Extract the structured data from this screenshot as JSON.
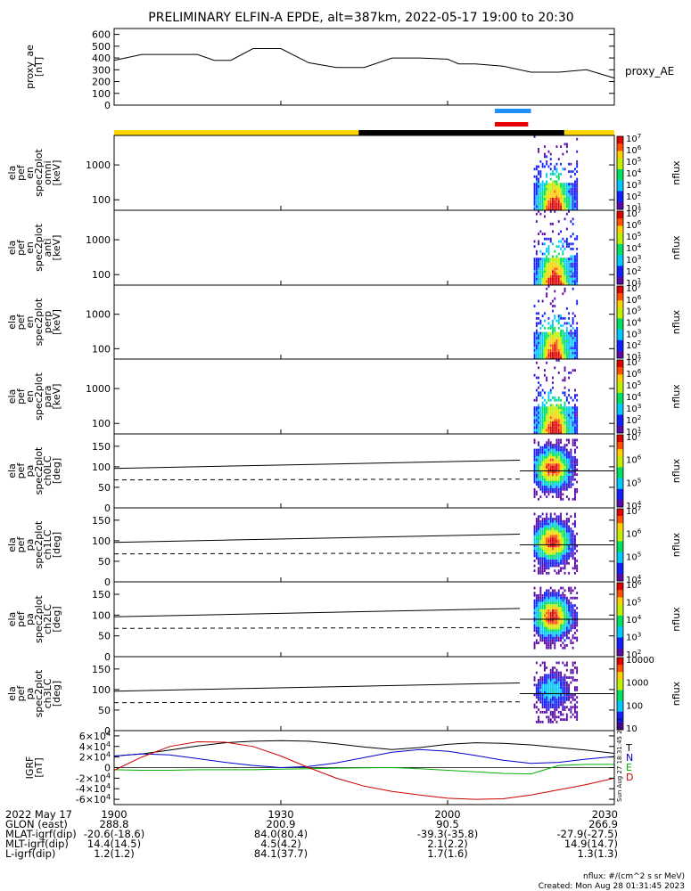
{
  "title": "PRELIMINARY ELFIN-A EPDE, alt=387km, 2022-05-17 19:00 to 20:30",
  "stamp": "Sun Aug 27 18:31:45 2023",
  "footer": {
    "units_note": "nflux: #/(cm^2 s sr MeV)",
    "created": "Created: Mon Aug 28 01:31:45 2023"
  },
  "colors": {
    "quality_bar_yellow": "#ffd700",
    "quality_bar_black": "#000000",
    "science_zone_blue": "#1e90ff",
    "science_zone_red": "#e60000",
    "grf_t": "#000000",
    "grf_n": "#0000cc",
    "grf_e": "#00b000",
    "grf_d": "#cc0000"
  },
  "chart_data": [
    {
      "id": "proxy_ae",
      "type": "line",
      "ylabel_lines": [
        "proxy_ae",
        "[nT]"
      ],
      "right_label": "proxy_AE",
      "ylim": [
        0,
        650
      ],
      "yticks": [
        0,
        100,
        200,
        300,
        400,
        500,
        600
      ],
      "xlim": [
        0,
        90
      ],
      "x": [
        0,
        5,
        10,
        15,
        18,
        21,
        25,
        30,
        35,
        40,
        43,
        45,
        50,
        55,
        60,
        62,
        65,
        70,
        75,
        80,
        85,
        90
      ],
      "values": [
        380,
        430,
        430,
        430,
        380,
        380,
        480,
        480,
        360,
        320,
        320,
        320,
        400,
        400,
        390,
        350,
        350,
        330,
        280,
        280,
        300,
        230
      ]
    },
    {
      "id": "ela_pef_en_spec2plot_omni",
      "type": "heatmap",
      "ylabel_lines": [
        "ela",
        "pef",
        "en",
        "spec2plot",
        "omni",
        "[keV]"
      ],
      "yscale": "log",
      "ylim": [
        50,
        7000
      ],
      "yticks": [
        100,
        1000
      ],
      "ytick_labels": [
        "100",
        "1000"
      ],
      "colorbar": {
        "label": "nflux",
        "scale": "log",
        "range": [
          10,
          10000000
        ],
        "ticks": [
          "10^1",
          "10^2",
          "10^3",
          "10^4",
          "10^5",
          "10^6",
          "10^7"
        ]
      },
      "event_window_min": [
        75.5,
        83.5
      ]
    },
    {
      "id": "ela_pef_en_spec2plot_anti",
      "type": "heatmap",
      "ylabel_lines": [
        "ela",
        "pef",
        "en",
        "spec2plot",
        "anti",
        "[keV]"
      ],
      "yscale": "log",
      "ylim": [
        50,
        7000
      ],
      "yticks": [
        100,
        1000
      ],
      "ytick_labels": [
        "100",
        "1000"
      ],
      "colorbar": {
        "label": "nflux",
        "scale": "log",
        "range": [
          10,
          10000000
        ],
        "ticks": [
          "10^1",
          "10^2",
          "10^3",
          "10^4",
          "10^5",
          "10^6",
          "10^7"
        ]
      },
      "event_window_min": [
        75.5,
        83.5
      ]
    },
    {
      "id": "ela_pef_en_spec2plot_perp",
      "type": "heatmap",
      "ylabel_lines": [
        "ela",
        "pef",
        "en",
        "spec2plot",
        "perp",
        "[keV]"
      ],
      "yscale": "log",
      "ylim": [
        50,
        7000
      ],
      "yticks": [
        100,
        1000
      ],
      "ytick_labels": [
        "100",
        "1000"
      ],
      "colorbar": {
        "label": "nflux",
        "scale": "log",
        "range": [
          10,
          10000000
        ],
        "ticks": [
          "10^1",
          "10^2",
          "10^3",
          "10^4",
          "10^5",
          "10^6",
          "10^7"
        ]
      },
      "event_window_min": [
        75.5,
        83.5
      ]
    },
    {
      "id": "ela_pef_en_spec2plot_para",
      "type": "heatmap",
      "ylabel_lines": [
        "ela",
        "pef",
        "en",
        "spec2plot",
        "para",
        "[keV]"
      ],
      "yscale": "log",
      "ylim": [
        50,
        7000
      ],
      "yticks": [
        100,
        1000
      ],
      "ytick_labels": [
        "100",
        "1000"
      ],
      "colorbar": {
        "label": "nflux",
        "scale": "log",
        "range": [
          10,
          10000000
        ],
        "ticks": [
          "10^1",
          "10^2",
          "10^3",
          "10^4",
          "10^5",
          "10^6",
          "10^7"
        ]
      },
      "event_window_min": [
        75.5,
        83.5
      ]
    },
    {
      "id": "ela_pef_pa_spec2plot_ch0LC",
      "type": "heatmap",
      "ylabel_lines": [
        "ela",
        "pef",
        "pa",
        "spec2plot",
        "ch0LC",
        "[deg]"
      ],
      "yscale": "linear",
      "ylim": [
        0,
        180
      ],
      "yticks": [
        0,
        50,
        100,
        150
      ],
      "ytick_labels": [
        "0",
        "50",
        "100",
        "150"
      ],
      "colorbar": {
        "label": "nflux",
        "scale": "log",
        "range": [
          1000,
          10000000
        ],
        "ticks": [
          "10^4",
          "10^5",
          "10^6",
          "10^7"
        ]
      },
      "loss_cone_solid_deg": [
        96,
        116
      ],
      "loss_cone_dashed_deg": [
        68,
        70
      ],
      "event_window_min": [
        75.5,
        83.5
      ]
    },
    {
      "id": "ela_pef_pa_spec2plot_ch1LC",
      "type": "heatmap",
      "ylabel_lines": [
        "ela",
        "pef",
        "pa",
        "spec2plot",
        "ch1LC",
        "[deg]"
      ],
      "yscale": "linear",
      "ylim": [
        0,
        180
      ],
      "yticks": [
        0,
        50,
        100,
        150
      ],
      "ytick_labels": [
        "0",
        "50",
        "100",
        "150"
      ],
      "colorbar": {
        "label": "nflux",
        "scale": "log",
        "range": [
          1000,
          10000000
        ],
        "ticks": [
          "10^4",
          "10^5",
          "10^6",
          "10^7"
        ]
      },
      "loss_cone_solid_deg": [
        96,
        116
      ],
      "loss_cone_dashed_deg": [
        68,
        70
      ],
      "event_window_min": [
        75.5,
        83.5
      ]
    },
    {
      "id": "ela_pef_pa_spec2plot_ch2LC",
      "type": "heatmap",
      "ylabel_lines": [
        "ela",
        "pef",
        "pa",
        "spec2plot",
        "ch2LC",
        "[deg]"
      ],
      "yscale": "linear",
      "ylim": [
        0,
        180
      ],
      "yticks": [
        0,
        50,
        100,
        150
      ],
      "ytick_labels": [
        "0",
        "50",
        "100",
        "150"
      ],
      "colorbar": {
        "label": "nflux",
        "scale": "log",
        "range": [
          100,
          1000000
        ],
        "ticks": [
          "10^2",
          "10^3",
          "10^4",
          "10^5",
          "10^6"
        ]
      },
      "loss_cone_solid_deg": [
        96,
        116
      ],
      "loss_cone_dashed_deg": [
        68,
        70
      ],
      "event_window_min": [
        75.5,
        83.5
      ]
    },
    {
      "id": "ela_pef_pa_spec2plot_ch3LC",
      "type": "heatmap",
      "ylabel_lines": [
        "ela",
        "pef",
        "pa",
        "spec2plot",
        "ch3LC",
        "[deg]"
      ],
      "yscale": "linear",
      "ylim": [
        0,
        180
      ],
      "yticks": [
        0,
        50,
        100,
        150
      ],
      "ytick_labels": [
        "0",
        "50",
        "100",
        "150"
      ],
      "colorbar": {
        "label": "nflux",
        "scale": "log",
        "range": [
          10,
          10000
        ],
        "ticks": [
          "10",
          "100",
          "1000",
          "10000"
        ]
      },
      "loss_cone_solid_deg": [
        96,
        116
      ],
      "loss_cone_dashed_deg": [
        68,
        70
      ],
      "event_window_min": [
        75.5,
        83.5
      ]
    },
    {
      "id": "igrf",
      "type": "line",
      "ylabel_lines": [
        "IGRF",
        "[nT]"
      ],
      "ylim": [
        -70000,
        70000
      ],
      "yticks": [
        -60000,
        -40000,
        -20000,
        0,
        20000,
        40000,
        60000
      ],
      "ytick_labels": [
        "-6×10^4",
        "-4×10^4",
        "-2×10^4",
        "0",
        "2×10^4",
        "4×10^4",
        "6×10^4"
      ],
      "xlim": [
        0,
        90
      ],
      "x": [
        0,
        5,
        10,
        15,
        20,
        25,
        30,
        35,
        40,
        45,
        50,
        55,
        60,
        65,
        70,
        75,
        80,
        85,
        90
      ],
      "series": [
        {
          "name": "T",
          "values": [
            22000,
            26000,
            33000,
            41000,
            47000,
            50000,
            51000,
            50000,
            45000,
            39000,
            34000,
            38000,
            44000,
            47000,
            46000,
            43000,
            38000,
            33000,
            27000
          ]
        },
        {
          "name": "N",
          "values": [
            22000,
            26000,
            24000,
            17000,
            10000,
            4000,
            0,
            2000,
            9000,
            19000,
            29000,
            34000,
            31000,
            23000,
            14000,
            8000,
            10000,
            16000,
            21000
          ]
        },
        {
          "name": "E",
          "values": [
            -4000,
            -5000,
            -5000,
            -4000,
            -4000,
            -4000,
            -3000,
            -2000,
            -1000,
            -500,
            0,
            -2000,
            -5000,
            -8000,
            -11000,
            -12000,
            4000,
            6000,
            6000
          ]
        },
        {
          "name": "D",
          "values": [
            -5000,
            20000,
            40000,
            49000,
            48000,
            40000,
            22000,
            0,
            -20000,
            -35000,
            -45000,
            -52000,
            -58000,
            -60000,
            -59000,
            -52000,
            -42000,
            -32000,
            -20000
          ]
        }
      ]
    }
  ],
  "x_axis": {
    "xlim": [
      0,
      90
    ],
    "tick_minutes": [
      0,
      30,
      60,
      90
    ],
    "rows": [
      {
        "label": "2022 May 17",
        "values": [
          "1900",
          "1930",
          "2000",
          "2030"
        ]
      },
      {
        "label": "GLON (east)",
        "values": [
          "288.8",
          "200.9",
          "90.5",
          "266.9"
        ]
      },
      {
        "label": "MLAT-igrf(dip)",
        "values": [
          "-20.6(-18.6)",
          "84.0(80.4)",
          "-39.3(-35.8)",
          "-27.9(-27.5)"
        ]
      },
      {
        "label": "MLT-igrf(dip)",
        "values": [
          "14.4(14.5)",
          "4.5(4.2)",
          "2.1(2.2)",
          "14.9(14.7)"
        ]
      },
      {
        "label": "L-igrf(dip)",
        "values": [
          "1.2(1.2)",
          "84.1(37.7)",
          "1.7(1.6)",
          "1.3(1.3)"
        ]
      }
    ]
  },
  "quality_bar": [
    {
      "from_min": 0,
      "to_min": 44,
      "state": "yellow"
    },
    {
      "from_min": 44,
      "to_min": 81,
      "state": "black"
    },
    {
      "from_min": 81,
      "to_min": 90,
      "state": "yellow"
    }
  ],
  "science_zones": [
    {
      "from_min": 68.5,
      "to_min": 75,
      "color": "blue"
    },
    {
      "from_min": 68.5,
      "to_min": 74.5,
      "color": "red"
    }
  ]
}
